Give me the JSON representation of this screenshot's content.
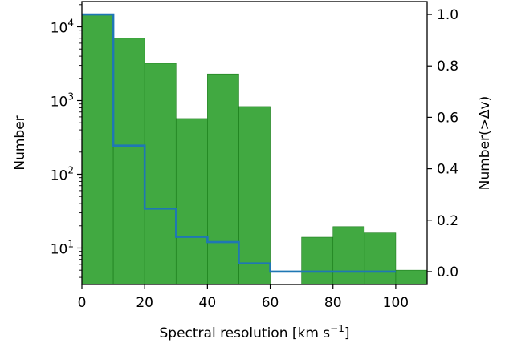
{
  "chart_data": {
    "type": "bar",
    "xlabel": "Spectral resolution [km s",
    "xlabel_sup": "−1",
    "xlabel_end": "]",
    "ylabel_left": "Number",
    "ylabel_right": "Number(>Δv)",
    "xlim": [
      0,
      110
    ],
    "ylim_left": [
      3.2,
      22000
    ],
    "y_left_scale": "log",
    "ylim_right": [
      -0.05,
      1.05
    ],
    "x_ticks": [
      0,
      20,
      40,
      60,
      80,
      100
    ],
    "x_tick_labels": [
      "0",
      "20",
      "40",
      "60",
      "80",
      "100"
    ],
    "y_left_ticks": [
      {
        "value": 10,
        "base": "10",
        "exp": "1"
      },
      {
        "value": 100,
        "base": "10",
        "exp": "2"
      },
      {
        "value": 1000,
        "base": "10",
        "exp": "3"
      },
      {
        "value": 10000,
        "base": "10",
        "exp": "4"
      }
    ],
    "y_right_ticks": [
      0.0,
      0.2,
      0.4,
      0.6,
      0.8,
      1.0
    ],
    "y_right_tick_labels": [
      "0.0",
      "0.2",
      "0.4",
      "0.6",
      "0.8",
      "1.0"
    ],
    "histogram": {
      "color": "#2ca02c",
      "bins": [
        {
          "x0": 0,
          "x1": 10,
          "count": 14500
        },
        {
          "x0": 10,
          "x1": 20,
          "count": 7000
        },
        {
          "x0": 20,
          "x1": 30,
          "count": 3200
        },
        {
          "x0": 30,
          "x1": 40,
          "count": 570
        },
        {
          "x0": 40,
          "x1": 50,
          "count": 2300
        },
        {
          "x0": 50,
          "x1": 60,
          "count": 830
        },
        {
          "x0": 60,
          "x1": 70,
          "count": 0
        },
        {
          "x0": 70,
          "x1": 80,
          "count": 14
        },
        {
          "x0": 80,
          "x1": 90,
          "count": 19.5
        },
        {
          "x0": 90,
          "x1": 100,
          "count": 16
        },
        {
          "x0": 100,
          "x1": 110,
          "count": 5
        }
      ]
    },
    "cumulative": {
      "color": "#1f77b4",
      "axis": "right",
      "steps": [
        {
          "x0": 0,
          "x1": 10,
          "y": 1.0
        },
        {
          "x0": 10,
          "x1": 20,
          "y": 0.49
        },
        {
          "x0": 20,
          "x1": 30,
          "y": 0.245
        },
        {
          "x0": 30,
          "x1": 40,
          "y": 0.135
        },
        {
          "x0": 40,
          "x1": 50,
          "y": 0.115
        },
        {
          "x0": 50,
          "x1": 60,
          "y": 0.032
        },
        {
          "x0": 60,
          "x1": 100,
          "y": 0.0
        }
      ]
    }
  }
}
